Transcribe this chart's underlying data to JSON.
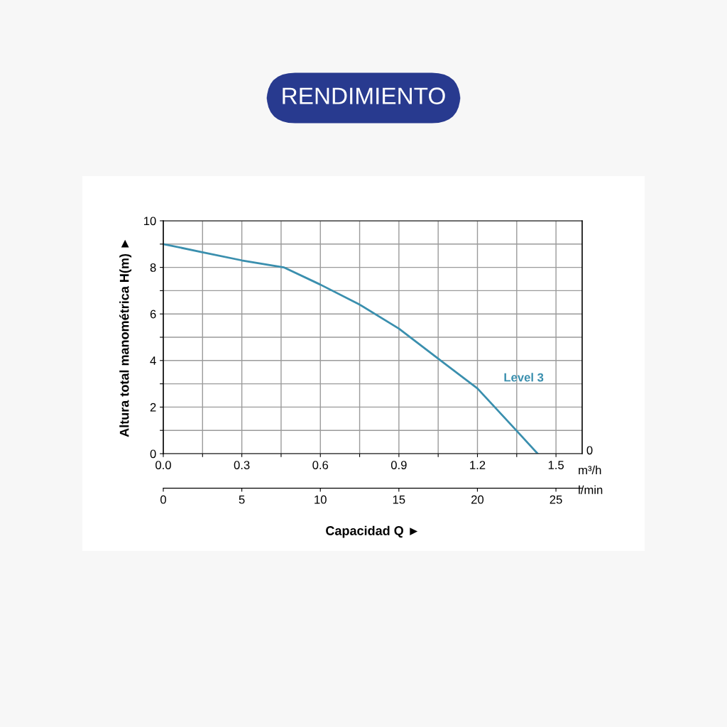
{
  "chart_data": {
    "type": "line",
    "title": "RENDIMIENTO",
    "xlabel": "Capacidad Q ►",
    "ylabel": "Altura total manométrica H(m) ►",
    "annotations": [
      "m³/h",
      "l/min",
      "0"
    ],
    "x": [
      0,
      0.15,
      0.3,
      0.46,
      0.6,
      0.75,
      0.9,
      1.05,
      1.2,
      1.35,
      1.43
    ],
    "series": [
      {
        "name": "Level 3",
        "color": "#3a8fae",
        "values": [
          9.0,
          8.65,
          8.3,
          8.0,
          7.26,
          6.4,
          5.37,
          4.08,
          2.8,
          0.98,
          0
        ]
      }
    ],
    "xlim": [
      0,
      1.6
    ],
    "xticks": [
      {
        "value": 0,
        "label": "0.0"
      },
      {
        "value": 0.15,
        "label": null
      },
      0.3,
      {
        "value": 0.45,
        "label": null
      },
      0.6,
      {
        "value": 0.75,
        "label": null
      },
      0.9,
      {
        "value": 1.05,
        "label": null
      },
      1.2,
      {
        "value": 1.35,
        "label": null
      },
      1.5
    ],
    "ylim": [
      0,
      10
    ],
    "yticks": [
      0,
      {
        "value": 1,
        "label": null
      },
      2,
      {
        "value": 3,
        "label": null
      },
      4,
      {
        "value": 5,
        "label": null
      },
      6,
      {
        "value": 7,
        "label": null
      },
      8,
      {
        "value": 9,
        "label": null
      },
      10
    ],
    "x2lim": [
      0,
      26.67
    ],
    "x2ticks": [
      0,
      5,
      10,
      15,
      20,
      25
    ],
    "grid": true,
    "legend": false,
    "line_style": "solid",
    "marker": "none"
  }
}
